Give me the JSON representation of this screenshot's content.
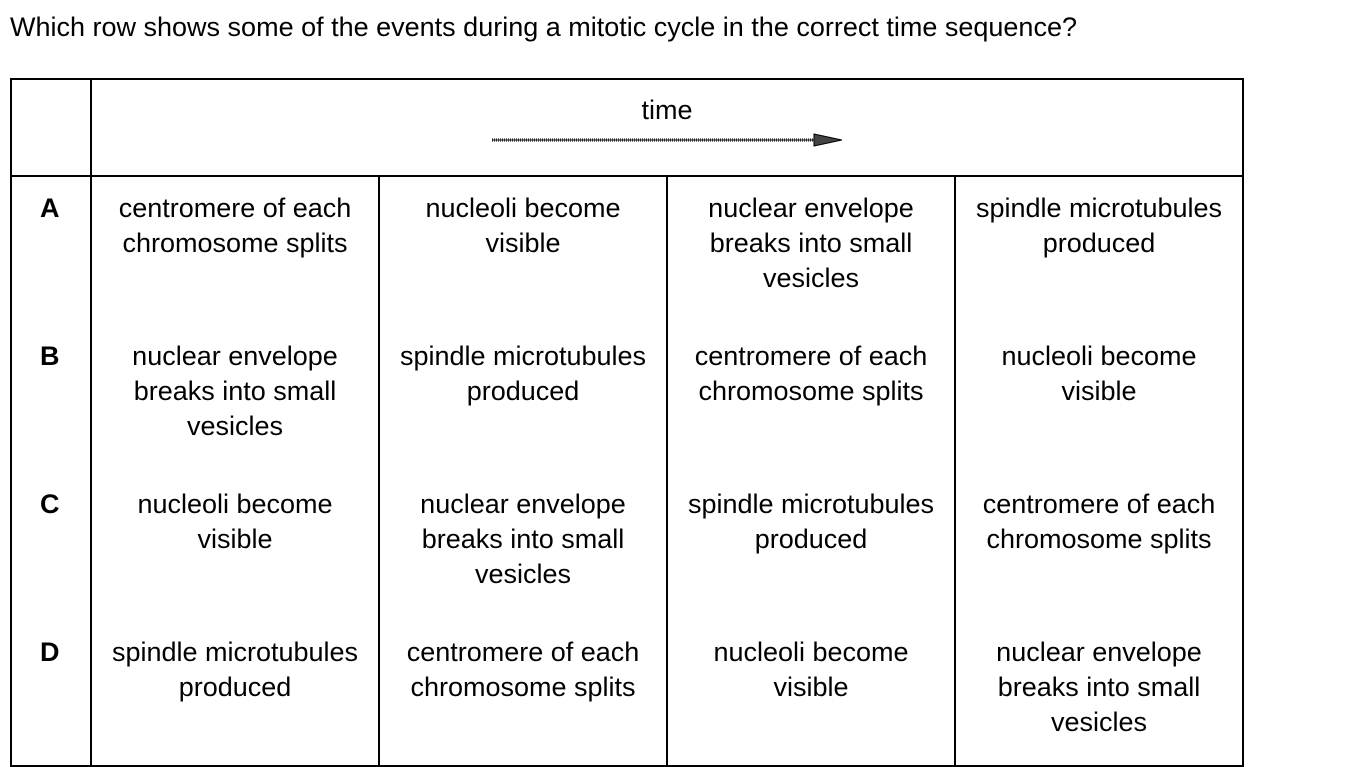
{
  "question": "Which row shows some of the events during a mitotic cycle in the correct time sequence?",
  "header": {
    "time_label": "time"
  },
  "rows": [
    {
      "label": "A",
      "events": [
        "centromere of each chromosome splits",
        "nucleoli become visible",
        "nuclear envelope breaks into small vesicles",
        "spindle microtubules produced"
      ]
    },
    {
      "label": "B",
      "events": [
        "nuclear envelope breaks into small vesicles",
        "spindle microtubules produced",
        "centromere of each chromosome splits",
        "nucleoli become visible"
      ]
    },
    {
      "label": "C",
      "events": [
        "nucleoli become visible",
        "nuclear envelope breaks into small vesicles",
        "spindle microtubules produced",
        "centromere of each chromosome splits"
      ]
    },
    {
      "label": "D",
      "events": [
        "spindle microtubules produced",
        "centromere of each chromosome splits",
        "nucleoli become visible",
        "nuclear envelope breaks into small vesicles"
      ]
    }
  ],
  "colors": {
    "text": "#000000",
    "border": "#000000",
    "background": "#ffffff"
  },
  "icons": {
    "time_arrow": "right-arrow-icon"
  }
}
